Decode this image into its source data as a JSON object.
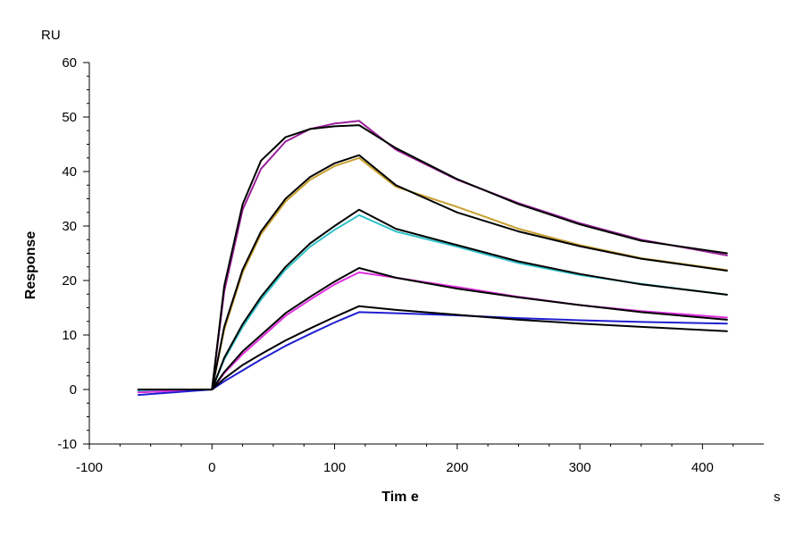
{
  "chart_data": {
    "type": "line",
    "xlabel": "Tim e",
    "ylabel": "Response",
    "x_unit": "s",
    "y_unit": "RU",
    "xlim": [
      -100,
      450
    ],
    "ylim": [
      -10,
      60
    ],
    "x_ticks": [
      "-100",
      "0",
      "100",
      "200",
      "300",
      "400"
    ],
    "y_ticks": [
      "-10",
      "0",
      "10",
      "20",
      "30",
      "40",
      "50",
      "60"
    ],
    "grid": false,
    "legend": "none",
    "series": [
      {
        "color": "#9b1f9b",
        "points": [
          [
            -60,
            -0.5
          ],
          [
            0,
            0
          ],
          [
            10,
            18
          ],
          [
            25,
            33
          ],
          [
            40,
            40.5
          ],
          [
            60,
            45.5
          ],
          [
            80,
            47.8
          ],
          [
            100,
            48.8
          ],
          [
            120,
            49.3
          ],
          [
            150,
            44
          ],
          [
            200,
            38.5
          ],
          [
            250,
            34.2
          ],
          [
            300,
            30.5
          ],
          [
            350,
            27.5
          ],
          [
            420,
            24.6
          ]
        ]
      },
      {
        "color": "#c8a030",
        "points": [
          [
            -60,
            -0.3
          ],
          [
            0,
            0
          ],
          [
            10,
            11
          ],
          [
            25,
            21.5
          ],
          [
            40,
            28.5
          ],
          [
            60,
            34.5
          ],
          [
            80,
            38.5
          ],
          [
            100,
            41
          ],
          [
            120,
            42.5
          ],
          [
            150,
            37.2
          ],
          [
            200,
            33.5
          ],
          [
            250,
            29.5
          ],
          [
            300,
            26.5
          ],
          [
            350,
            24.1
          ],
          [
            420,
            21.9
          ]
        ]
      },
      {
        "color": "#30c0c8",
        "points": [
          [
            -60,
            -0.3
          ],
          [
            0,
            0
          ],
          [
            10,
            5.5
          ],
          [
            25,
            11.5
          ],
          [
            40,
            16.5
          ],
          [
            60,
            22
          ],
          [
            80,
            26.2
          ],
          [
            100,
            29.3
          ],
          [
            120,
            32
          ],
          [
            150,
            29
          ],
          [
            200,
            26.2
          ],
          [
            250,
            23.2
          ],
          [
            300,
            21
          ],
          [
            350,
            19.4
          ],
          [
            420,
            17.4
          ]
        ]
      },
      {
        "color": "#e030e0",
        "points": [
          [
            -60,
            -0.5
          ],
          [
            0,
            0
          ],
          [
            10,
            3
          ],
          [
            25,
            6.5
          ],
          [
            40,
            9.5
          ],
          [
            60,
            13.5
          ],
          [
            80,
            16.5
          ],
          [
            100,
            19.3
          ],
          [
            120,
            21.5
          ],
          [
            150,
            20.5
          ],
          [
            200,
            18.8
          ],
          [
            250,
            17
          ],
          [
            300,
            15.5
          ],
          [
            350,
            14.4
          ],
          [
            420,
            13.2
          ]
        ]
      },
      {
        "color": "#1f1fd0",
        "points": [
          [
            -60,
            -1
          ],
          [
            0,
            0
          ],
          [
            10,
            1.5
          ],
          [
            25,
            3.5
          ],
          [
            40,
            5.5
          ],
          [
            60,
            8
          ],
          [
            80,
            10.2
          ],
          [
            100,
            12.3
          ],
          [
            120,
            14.2
          ],
          [
            150,
            14
          ],
          [
            200,
            13.6
          ],
          [
            250,
            13.1
          ],
          [
            300,
            12.7
          ],
          [
            350,
            12.4
          ],
          [
            420,
            12.1
          ]
        ]
      },
      {
        "color": "#000000",
        "points": [
          [
            -60,
            0
          ],
          [
            0,
            0
          ],
          [
            10,
            19
          ],
          [
            25,
            34
          ],
          [
            40,
            42
          ],
          [
            60,
            46.3
          ],
          [
            80,
            47.8
          ],
          [
            100,
            48.3
          ],
          [
            120,
            48.5
          ],
          [
            150,
            44.3
          ],
          [
            200,
            38.6
          ],
          [
            250,
            34
          ],
          [
            300,
            30.3
          ],
          [
            350,
            27.3
          ],
          [
            420,
            25
          ]
        ]
      },
      {
        "color": "#000000",
        "points": [
          [
            -60,
            0
          ],
          [
            0,
            0
          ],
          [
            10,
            11.5
          ],
          [
            25,
            22
          ],
          [
            40,
            29
          ],
          [
            60,
            35
          ],
          [
            80,
            39
          ],
          [
            100,
            41.5
          ],
          [
            120,
            43
          ],
          [
            150,
            37.5
          ],
          [
            200,
            32.5
          ],
          [
            250,
            29
          ],
          [
            300,
            26.3
          ],
          [
            350,
            24
          ],
          [
            420,
            21.8
          ]
        ]
      },
      {
        "color": "#000000",
        "points": [
          [
            -60,
            0
          ],
          [
            0,
            0
          ],
          [
            10,
            5.8
          ],
          [
            25,
            12
          ],
          [
            40,
            17
          ],
          [
            60,
            22.5
          ],
          [
            80,
            26.8
          ],
          [
            100,
            30
          ],
          [
            120,
            33
          ],
          [
            150,
            29.5
          ],
          [
            200,
            26.5
          ],
          [
            250,
            23.5
          ],
          [
            300,
            21.2
          ],
          [
            350,
            19.3
          ],
          [
            420,
            17.4
          ]
        ]
      },
      {
        "color": "#000000",
        "points": [
          [
            -60,
            0
          ],
          [
            0,
            0
          ],
          [
            10,
            3.2
          ],
          [
            25,
            7
          ],
          [
            40,
            10
          ],
          [
            60,
            14
          ],
          [
            80,
            17
          ],
          [
            100,
            19.8
          ],
          [
            120,
            22.3
          ],
          [
            150,
            20.5
          ],
          [
            200,
            18.5
          ],
          [
            250,
            16.9
          ],
          [
            300,
            15.5
          ],
          [
            350,
            14.2
          ],
          [
            420,
            12.8
          ]
        ]
      },
      {
        "color": "#000000",
        "points": [
          [
            -60,
            0
          ],
          [
            0,
            0
          ],
          [
            10,
            2
          ],
          [
            25,
            4.5
          ],
          [
            40,
            6.5
          ],
          [
            60,
            9
          ],
          [
            80,
            11.2
          ],
          [
            100,
            13.3
          ],
          [
            120,
            15.3
          ],
          [
            150,
            14.6
          ],
          [
            200,
            13.7
          ],
          [
            250,
            12.8
          ],
          [
            300,
            12.1
          ],
          [
            350,
            11.5
          ],
          [
            420,
            10.7
          ]
        ]
      }
    ]
  }
}
